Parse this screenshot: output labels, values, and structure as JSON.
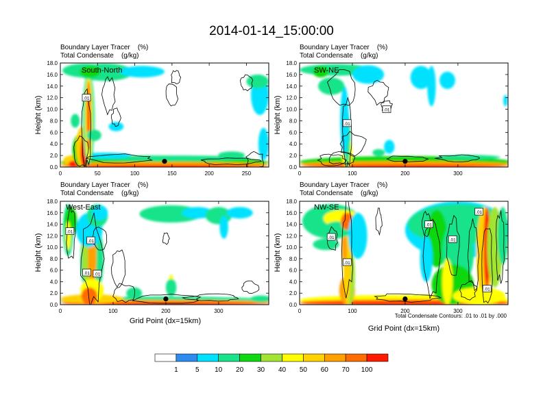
{
  "figure": {
    "title": "2014-01-14_15:00:00",
    "footnote": "Total Condensate Contours: .01 to .01 by .000",
    "xlabel": "Grid Point (dx=15km)",
    "ylabel": "Height (km)"
  },
  "chart_data": [
    {
      "type": "heatmap",
      "id": "south-north",
      "label": "South-North",
      "line1": "Boundary Layer Tracer    (%)",
      "line2": "Total Condensate    (g/kg)",
      "xlim": [
        0,
        280
      ],
      "ylim": [
        0,
        18
      ],
      "xticks": [
        "0",
        "50",
        "100",
        "150",
        "200",
        "250"
      ],
      "xtick_values": [
        0,
        50,
        100,
        150,
        200,
        250
      ],
      "yticks": [
        "0.0",
        "2.0",
        "4.0",
        "6.0",
        "8.0",
        "10.0",
        "12.0",
        "14.0",
        "16.0",
        "18.0"
      ],
      "marker": [
        140,
        1.0
      ],
      "contour_labels": [
        {
          "text": ".01",
          "x": 35,
          "y": 12.0
        }
      ],
      "has_xlabel": false,
      "has_footnote": false
    },
    {
      "type": "heatmap",
      "id": "sw-ne",
      "label": "SW-NE",
      "line1": "Boundary Layer Tracer    (%)",
      "line2": "Total Condensate    (g/kg)",
      "xlim": [
        0,
        395
      ],
      "ylim": [
        0,
        18
      ],
      "xticks": [
        "0",
        "100",
        "200",
        "300"
      ],
      "xtick_values": [
        0,
        100,
        200,
        300
      ],
      "yticks": [
        "0.0",
        "2.0",
        "4.0",
        "6.0",
        "8.0",
        "10.0",
        "12.0",
        "14.0",
        "16.0",
        "18.0"
      ],
      "marker": [
        200,
        1.0
      ],
      "contour_labels": [
        {
          "text": ".01",
          "x": 90,
          "y": 7.6
        },
        {
          "text": ".01",
          "x": 165,
          "y": 10.0
        }
      ],
      "has_xlabel": false,
      "has_footnote": false
    },
    {
      "type": "heatmap",
      "id": "west-east",
      "label": "West-East",
      "line1": "Boundary Layer Tracer    (%)",
      "line2": "Total Condensate    (g/kg)",
      "xlim": [
        0,
        395
      ],
      "ylim": [
        0,
        18
      ],
      "xticks": [
        "0",
        "100",
        "200",
        "300"
      ],
      "xtick_values": [
        0,
        100,
        200,
        300
      ],
      "yticks": [
        "0.0",
        "2.0",
        "4.0",
        "6.0",
        "8.0",
        "10.0",
        "12.0",
        "14.0",
        "16.0",
        "18.0"
      ],
      "marker": [
        200,
        1.0
      ],
      "contour_labels": [
        {
          "text": ".01",
          "x": 18,
          "y": 12.8
        },
        {
          "text": ".01",
          "x": 58,
          "y": 11.2
        },
        {
          "text": ".01",
          "x": 50,
          "y": 5.6
        },
        {
          "text": ".01",
          "x": 70,
          "y": 5.4
        }
      ],
      "has_xlabel": true,
      "has_footnote": false
    },
    {
      "type": "heatmap",
      "id": "nw-se",
      "label": "NW-SE",
      "line1": "Boundary Layer Tracer    (%)",
      "line2": "Total Condensate    (g/kg)",
      "xlim": [
        0,
        395
      ],
      "ylim": [
        0,
        18
      ],
      "xticks": [
        "0",
        "100",
        "200",
        "300"
      ],
      "xtick_values": [
        0,
        100,
        200,
        300
      ],
      "yticks": [
        "0.0",
        "2.0",
        "4.0",
        "6.0",
        "8.0",
        "10.0",
        "12.0",
        "14.0",
        "16.0",
        "18.0"
      ],
      "marker": [
        200,
        1.0
      ],
      "contour_labels": [
        {
          "text": ".01",
          "x": 340,
          "y": 16.2
        },
        {
          "text": ".01",
          "x": 245,
          "y": 14.0
        },
        {
          "text": ".01",
          "x": 60,
          "y": 11.8
        },
        {
          "text": ".01",
          "x": 290,
          "y": 11.4
        },
        {
          "text": ".01",
          "x": 90,
          "y": 7.4
        },
        {
          "text": ".01",
          "x": 355,
          "y": 2.8
        }
      ],
      "has_xlabel": true,
      "has_footnote": true
    }
  ],
  "colorbar": {
    "labels": [
      "1",
      "5",
      "10",
      "20",
      "30",
      "40",
      "50",
      "60",
      "70",
      "100"
    ],
    "colors": [
      "#ffffff",
      "#2d8cf0",
      "#00e1ff",
      "#19e38a",
      "#10d810",
      "#a2e431",
      "#ffff00",
      "#ffd200",
      "#ffa000",
      "#ff6c00",
      "#ff1a00"
    ]
  }
}
